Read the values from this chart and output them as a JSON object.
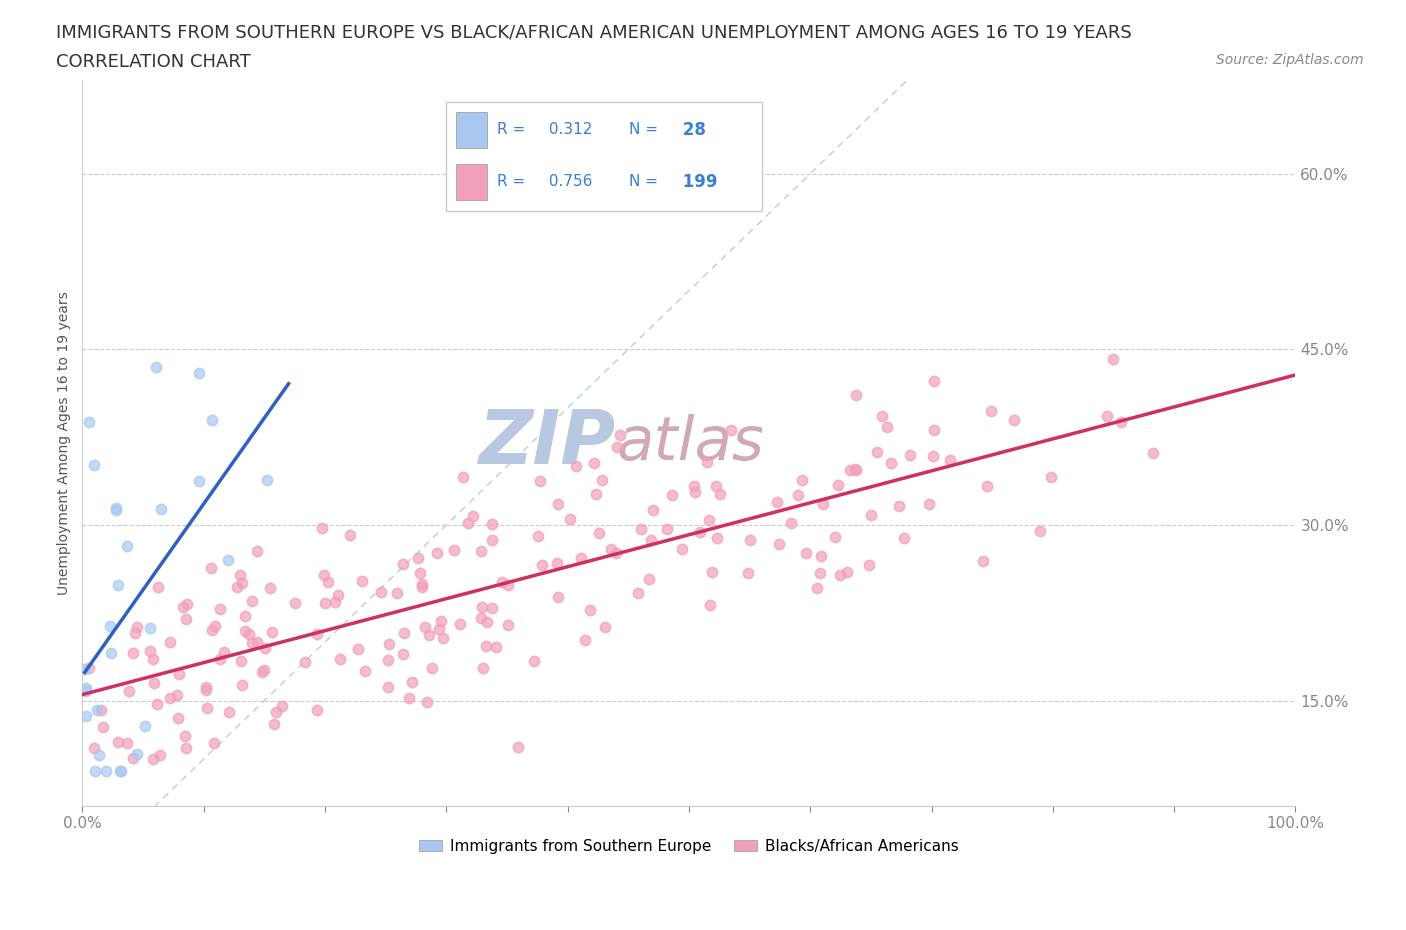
{
  "title_line1": "IMMIGRANTS FROM SOUTHERN EUROPE VS BLACK/AFRICAN AMERICAN UNEMPLOYMENT AMONG AGES 16 TO 19 YEARS",
  "title_line2": "CORRELATION CHART",
  "source_text": "Source: ZipAtlas.com",
  "ylabel": "Unemployment Among Ages 16 to 19 years",
  "xlim": [
    0.0,
    1.0
  ],
  "ylim": [
    0.06,
    0.68
  ],
  "y_tick_positions": [
    0.15,
    0.3,
    0.45,
    0.6
  ],
  "y_tick_labels": [
    "15.0%",
    "30.0%",
    "45.0%",
    "60.0%"
  ],
  "blue_color": "#a8c8f0",
  "pink_color": "#f0a0b8",
  "blue_line_color": "#3060c0",
  "pink_line_color": "#d03060",
  "diag_line_color": "#a0b8d8",
  "text_color_blue": "#3a7fd5",
  "watermark_color_zip": "#b8c8e0",
  "watermark_color_atlas": "#d0a8b8",
  "R_blue": 0.312,
  "N_blue": 28,
  "R_pink": 0.756,
  "N_pink": 199,
  "background_color": "#ffffff",
  "grid_color": "#cccccc",
  "title_fontsize": 13,
  "axis_label_fontsize": 10,
  "tick_fontsize": 11,
  "source_fontsize": 10,
  "scatter_size": 55,
  "scatter_alpha": 0.7,
  "scatter_linewidth": 1.2
}
